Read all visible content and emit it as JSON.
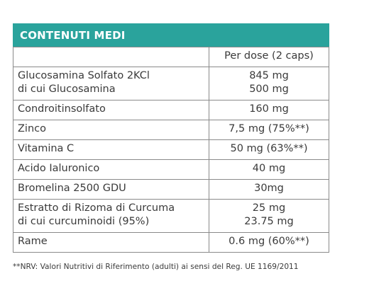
{
  "title": "CONTENUTI MEDI",
  "column_header": "Per dose (2 caps)",
  "rows": [
    {
      "name": [
        "Glucosamina Solfato 2KCl",
        "di cui Glucosamina"
      ],
      "value": [
        "845 mg",
        "500 mg"
      ]
    },
    {
      "name": [
        "Condroitinsolfato"
      ],
      "value": [
        "160 mg"
      ]
    },
    {
      "name": [
        "Zinco"
      ],
      "value": [
        "7,5 mg (75%**)"
      ]
    },
    {
      "name": [
        "Vitamina C"
      ],
      "value": [
        "50 mg (63%**)"
      ]
    },
    {
      "name": [
        "Acido Ialuronico"
      ],
      "value": [
        "40 mg"
      ]
    },
    {
      "name": [
        "Bromelina 2500 GDU"
      ],
      "value": [
        "30mg"
      ]
    },
    {
      "name": [
        "Estratto di Rizoma  di Curcuma",
        "di cui curcuminoidi (95%)"
      ],
      "value": [
        "25 mg",
        "23.75 mg"
      ]
    },
    {
      "name": [
        "Rame"
      ],
      "value": [
        "0.6 mg (60%**)"
      ]
    }
  ],
  "footnote": "**NRV: Valori Nutritivi di Riferimento (adulti) ai sensi del Reg. UE 1169/2011",
  "colors": {
    "header_bg": "#2aa39c",
    "border": "#8a8a8a",
    "text": "#3a3a3a"
  }
}
